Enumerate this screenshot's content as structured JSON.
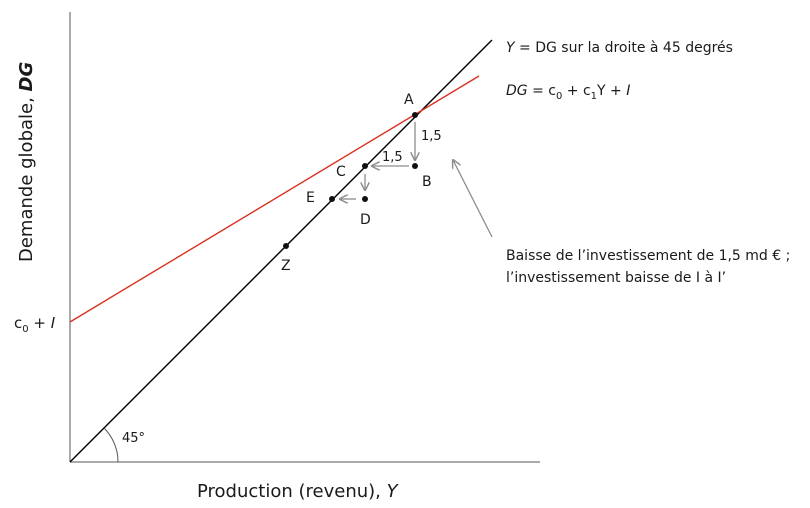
{
  "axes": {
    "y_title": "Demande globale, ",
    "y_title_var": "DG",
    "x_title": "Production (revenu), ",
    "x_title_var": "Y",
    "intercept_main": "c",
    "intercept_sub": "0",
    "intercept_rest": " + ",
    "intercept_var": "I",
    "angle_label": "45°"
  },
  "lines": {
    "line45_label_var": "Y",
    "line45_label_rest": " = DG sur la droite à 45 degrés",
    "dg_var": "DG",
    "dg_eq1": " = c",
    "dg_sub0": "0",
    "dg_eq2": " + c",
    "dg_sub1": "1",
    "dg_eq3": "Y + ",
    "dg_eq4": "I",
    "dg_color": "#d9311f",
    "line45_color": "#000000"
  },
  "points": {
    "A": "A",
    "B": "B",
    "C": "C",
    "D": "D",
    "E": "E",
    "Z": "Z"
  },
  "steps": {
    "vertical": "1,5",
    "horizontal": "1,5",
    "arrow_color": "#8c8c8c"
  },
  "annotation": {
    "line1": "Baisse de l’investissement de 1,5 md € ;",
    "line2": "l’investissement baisse de I à I’"
  }
}
